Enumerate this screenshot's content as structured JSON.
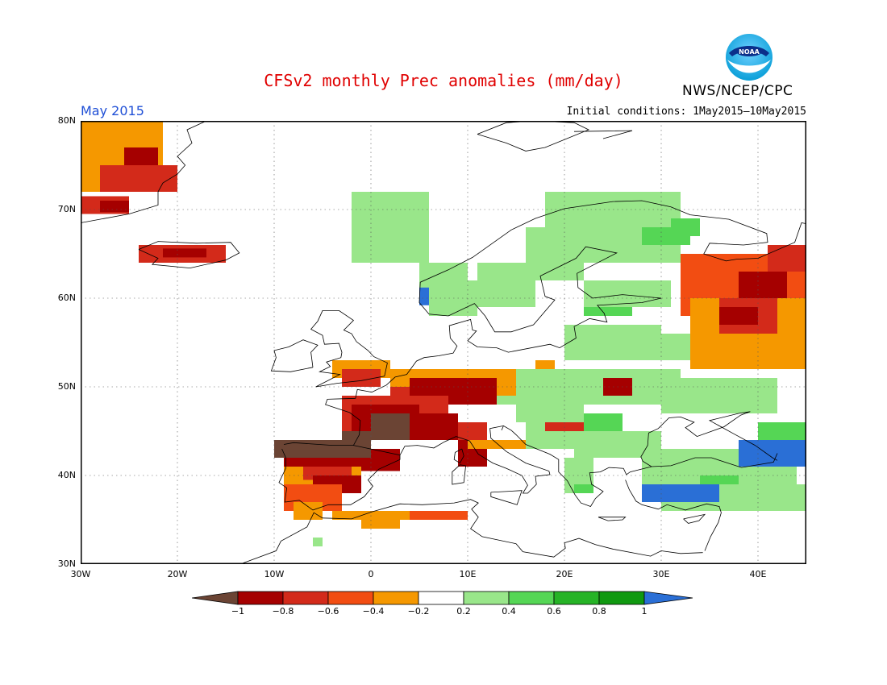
{
  "header": {
    "title": "CFSv2 monthly Prec anomalies (mm/day)",
    "agency": "NWS/NCEP/CPC",
    "logo_text": "NOAA",
    "month": "May 2015",
    "initial_conditions": "Initial conditions: 1May2015—10May2015"
  },
  "map": {
    "lon_range": [
      -30,
      45
    ],
    "lat_range": [
      30,
      80
    ],
    "grid": "dotted",
    "lat_labels": [
      "80N",
      "70N",
      "60N",
      "50N",
      "40N",
      "30N"
    ],
    "lon_labels": [
      "30W",
      "20W",
      "10W",
      "0",
      "10E",
      "20E",
      "30E",
      "40E"
    ]
  },
  "colorbar": {
    "labels": [
      "−1",
      "−0.8",
      "−0.6",
      "−0.4",
      "−0.2",
      "0.2",
      "0.4",
      "0.6",
      "0.8",
      "1"
    ],
    "colors": [
      "#6b4434",
      "#a50000",
      "#d32a1a",
      "#f24d12",
      "#f59800",
      "#ffffff",
      "#99e68a",
      "#55d655",
      "#26b326",
      "#109910",
      "#2a6fd6"
    ]
  }
}
